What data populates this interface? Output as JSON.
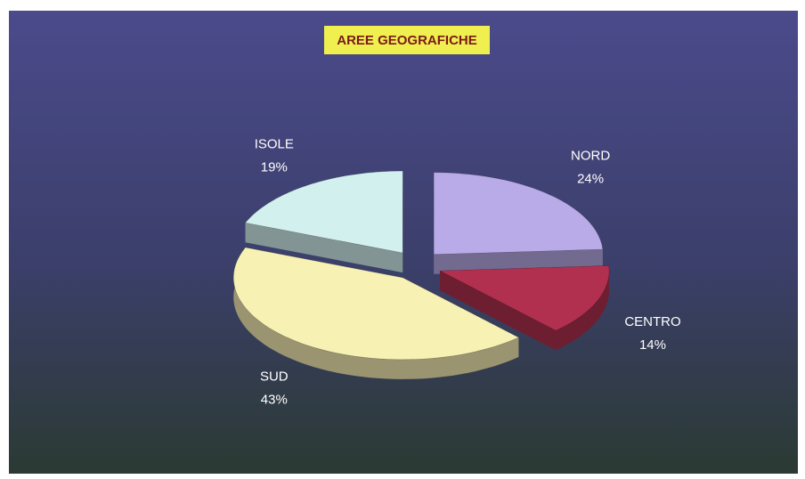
{
  "chart_data": {
    "type": "pie",
    "title": "AREE GEOGRAFICHE",
    "categories": [
      "NORD",
      "CENTRO",
      "SUD",
      "ISOLE"
    ],
    "values": [
      24,
      14,
      43,
      19
    ],
    "value_labels": [
      "24%",
      "14%",
      "43%",
      "19%"
    ],
    "colors": [
      "#b9abe8",
      "#b2304f",
      "#f8f1b4",
      "#d2f0ee"
    ]
  }
}
